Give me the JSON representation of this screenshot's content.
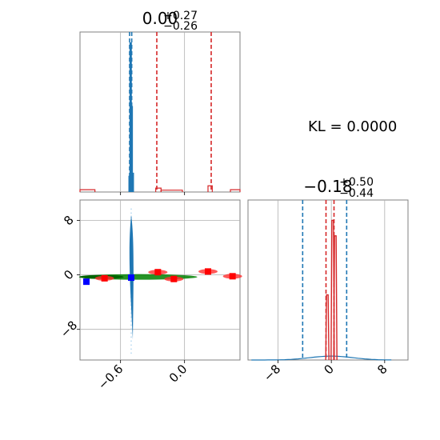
{
  "kl_label": "KL = 0.0000",
  "chart_data": [
    {
      "type": "histogram",
      "panel": "top-left",
      "title": {
        "value": "0.00",
        "plus": "+0.27",
        "minus": "−0.26"
      },
      "xlim": [
        -0.98,
        0.52
      ],
      "grid": true,
      "series": [
        {
          "name": "",
          "color": "#1f77b4",
          "bins": [
            [
              -0.52,
              -0.51,
              0.1
            ],
            [
              -0.51,
              -0.5,
              0.96
            ],
            [
              -0.5,
              -0.49,
              0.55
            ],
            [
              -0.49,
              -0.48,
              0.12
            ]
          ],
          "vlines": [
            -0.515,
            -0.495
          ]
        },
        {
          "name": "",
          "color": "#d62728",
          "bins": [
            [
              -0.98,
              -0.84,
              0.015
            ],
            [
              -0.27,
              -0.22,
              0.025
            ],
            [
              -0.22,
              -0.02,
              0.012
            ],
            [
              0.22,
              0.26,
              0.04
            ],
            [
              0.43,
              0.52,
              0.015
            ]
          ],
          "vlines": [
            -0.26,
            0.25
          ]
        }
      ]
    },
    {
      "type": "scatter",
      "panel": "bottom-left",
      "xlim": [
        -0.98,
        0.52
      ],
      "ylim": [
        -12.5,
        11
      ],
      "xticks": [
        "−0.6",
        "0.0"
      ],
      "yticks": [
        "8",
        "0",
        "−8"
      ],
      "grid": true,
      "series": [
        {
          "name": "",
          "color": "#1f77b4",
          "shape": "vertical-spread",
          "x": -0.5,
          "y_range": [
            -9.5,
            8.8
          ]
        },
        {
          "name": "",
          "color": "#008000",
          "shape": "ellipse-band",
          "x_range": [
            -0.98,
            0.12
          ],
          "y": -0.3
        },
        {
          "name": "",
          "color": "#ff0000",
          "shape": "square",
          "points": [
            [
              -0.75,
              -0.5
            ],
            [
              -0.25,
              0.4
            ],
            [
              -0.1,
              -0.6
            ],
            [
              0.22,
              0.5
            ],
            [
              0.45,
              -0.2
            ]
          ]
        },
        {
          "name": "",
          "color": "#0000ff",
          "shape": "square",
          "points": [
            [
              -0.92,
              -1.0
            ],
            [
              -0.5,
              -0.4
            ]
          ]
        }
      ]
    },
    {
      "type": "histogram",
      "panel": "bottom-right",
      "title": {
        "value": "−0.18",
        "plus": "+0.50",
        "minus": "−0.44"
      },
      "xlim": [
        -12.5,
        11.5
      ],
      "xticks": [
        "−8",
        "0",
        "8"
      ],
      "grid": true,
      "series": [
        {
          "name": "",
          "color": "#1f77b4",
          "shape": "broad-peak",
          "center": 0,
          "peak": 0.025,
          "vlines": [
            -4.3,
            2.3
          ]
        },
        {
          "name": "",
          "color": "#d62728",
          "shape": "narrow-peak",
          "center": 0,
          "peaks": [
            [
              -0.6,
              0.42
            ],
            [
              0.2,
              0.9
            ],
            [
              0.6,
              0.8
            ]
          ],
          "vlines": [
            -0.8,
            0.4
          ]
        }
      ]
    }
  ]
}
